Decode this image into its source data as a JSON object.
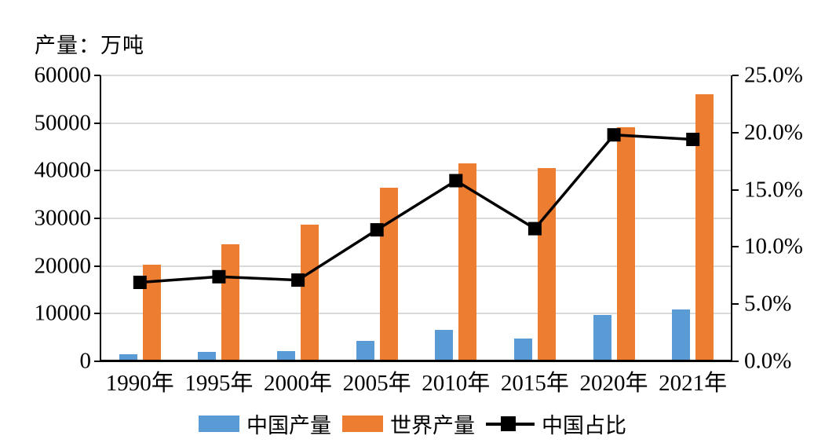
{
  "title": "产量：万吨",
  "chart_data": {
    "type": "bar+line-combo",
    "categories": [
      "1990年",
      "1995年",
      "2000年",
      "2005年",
      "2010年",
      "2015年",
      "2020年",
      "2021年"
    ],
    "series": [
      {
        "name": "中国产量",
        "type": "bar",
        "axis": "primary",
        "color": "#5B9BD5",
        "values": [
          1500,
          1900,
          2100,
          4300,
          6600,
          4800,
          9800,
          10900
        ]
      },
      {
        "name": "世界产量",
        "type": "bar",
        "axis": "primary",
        "color": "#ED7D31",
        "values": [
          20300,
          24500,
          28700,
          36400,
          41600,
          40600,
          49200,
          56100
        ]
      },
      {
        "name": "中国占比",
        "type": "line",
        "axis": "secondary",
        "color": "#000000",
        "values": [
          6.9,
          7.4,
          7.1,
          11.5,
          15.8,
          11.6,
          19.8,
          19.4
        ]
      }
    ],
    "left_axis": {
      "title": "产量：万吨",
      "min": 0,
      "max": 60000,
      "ticks": [
        "60000",
        "50000",
        "40000",
        "30000",
        "20000",
        "10000",
        "0"
      ]
    },
    "right_axis": {
      "min": 0,
      "max": 25,
      "ticks": [
        "25.0%",
        "20.0%",
        "15.0%",
        "10.0%",
        "5.0%",
        "0.0%"
      ]
    },
    "grid": true,
    "legend_position": "bottom",
    "legend": [
      {
        "label": "中国产量",
        "swatch": "blue-bar"
      },
      {
        "label": "世界产量",
        "swatch": "orange-bar"
      },
      {
        "label": "中国占比",
        "swatch": "black-line-square-marker"
      }
    ],
    "colors": {
      "china_bar": "#5B9BD5",
      "world_bar": "#ED7D31",
      "share_line": "#000000",
      "gridline": "#D9D9D9"
    }
  }
}
